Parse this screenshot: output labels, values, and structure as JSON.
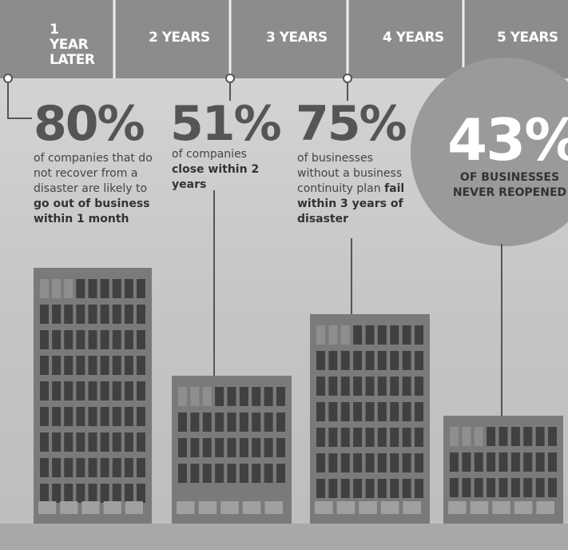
{
  "timeline": [
    "1 YEAR LATER",
    "2 YEARS",
    "3 YEARS",
    "4 YEARS",
    "5 YEARS"
  ],
  "stats": [
    {
      "percent": "80%",
      "description": "of companies that do not recover from a disaster are likely to",
      "emphasis": "go out of business within 1 month"
    },
    {
      "percent": "51%",
      "description": "of companies",
      "emphasis": "close within 2 years"
    },
    {
      "percent": "75%",
      "description": "of businesses without a business continuity plan",
      "emphasis": "fail within 3 years of disaster"
    },
    {
      "percent": "43%",
      "emphasis": "OF BUSINESSES NEVER REOPENED"
    }
  ]
}
